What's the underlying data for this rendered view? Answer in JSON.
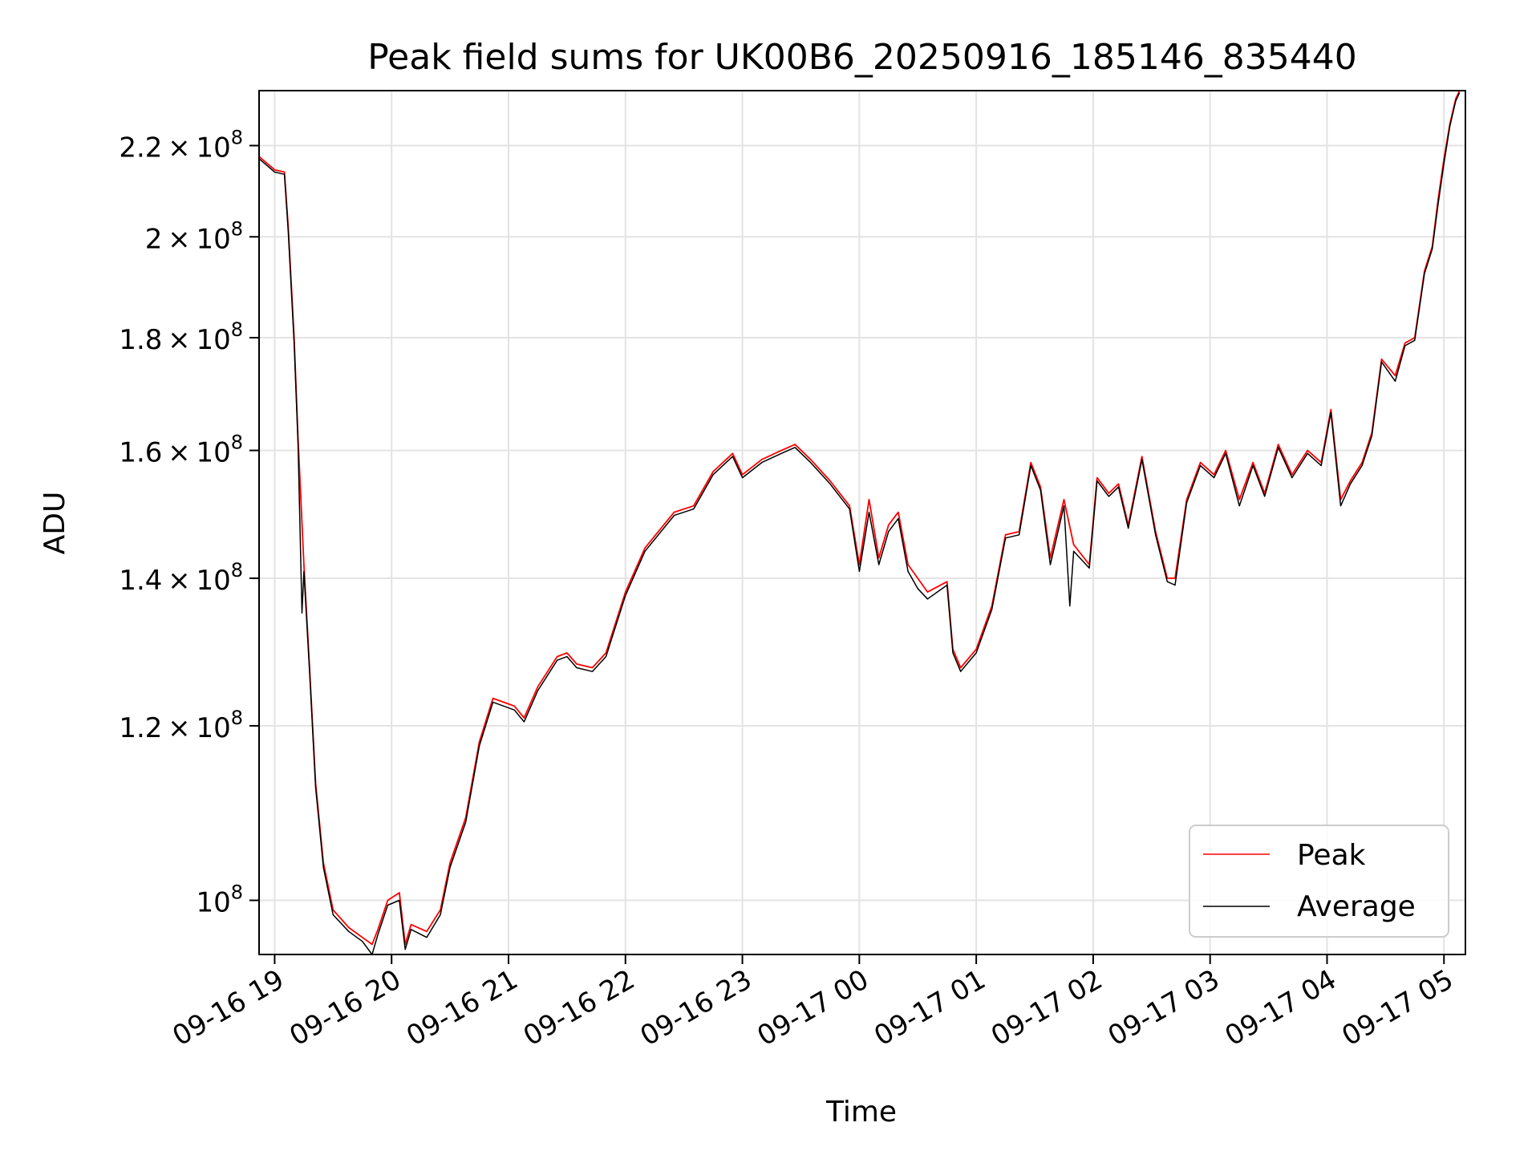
{
  "chart_data": {
    "type": "line",
    "title": "Peak field sums for UK00B6_20250916_185146_835440",
    "xlabel": "Time",
    "ylabel": "ADU",
    "xlim": [
      "2025-09-16 18:52",
      "2025-09-17 05:11"
    ],
    "ylim": [
      94500000.0,
      233000000.0
    ],
    "yscale": "log",
    "grid": true,
    "legend_position": "lower-right",
    "x_ticks": [
      {
        "t": "2025-09-16 19:00",
        "label": "09-16 19"
      },
      {
        "t": "2025-09-16 20:00",
        "label": "09-16 20"
      },
      {
        "t": "2025-09-16 21:00",
        "label": "09-16 21"
      },
      {
        "t": "2025-09-16 22:00",
        "label": "09-16 22"
      },
      {
        "t": "2025-09-16 23:00",
        "label": "09-16 23"
      },
      {
        "t": "2025-09-17 00:00",
        "label": "09-17 00"
      },
      {
        "t": "2025-09-17 01:00",
        "label": "09-17 01"
      },
      {
        "t": "2025-09-17 02:00",
        "label": "09-17 02"
      },
      {
        "t": "2025-09-17 03:00",
        "label": "09-17 03"
      },
      {
        "t": "2025-09-17 04:00",
        "label": "09-17 04"
      },
      {
        "t": "2025-09-17 05:00",
        "label": "09-17 05"
      }
    ],
    "y_ticks": [
      {
        "value": 100000000.0,
        "mantissa": "",
        "exp": "8"
      },
      {
        "value": 120000000.0,
        "mantissa": "1.2",
        "exp": "8"
      },
      {
        "value": 140000000.0,
        "mantissa": "1.4",
        "exp": "8"
      },
      {
        "value": 160000000.0,
        "mantissa": "1.6",
        "exp": "8"
      },
      {
        "value": 180000000.0,
        "mantissa": "1.8",
        "exp": "8"
      },
      {
        "value": 200000000.0,
        "mantissa": "2",
        "exp": "8"
      },
      {
        "value": 220000000.0,
        "mantissa": "2.2",
        "exp": "8"
      }
    ],
    "series": [
      {
        "name": "Peak",
        "color": "#ff0000",
        "points": [
          [
            "2025-09-16 18:52",
            217500000.0
          ],
          [
            "2025-09-16 18:56",
            216000000.0
          ],
          [
            "2025-09-16 19:00",
            214500000.0
          ],
          [
            "2025-09-16 19:05",
            214000000.0
          ],
          [
            "2025-09-16 19:07",
            202000000.0
          ],
          [
            "2025-09-16 19:10",
            180000000.0
          ],
          [
            "2025-09-16 19:12",
            162000000.0
          ],
          [
            "2025-09-16 19:15",
            142000000.0
          ],
          [
            "2025-09-16 19:18",
            127000000.0
          ],
          [
            "2025-09-16 19:21",
            113000000.0
          ],
          [
            "2025-09-16 19:25",
            104000000.0
          ],
          [
            "2025-09-16 19:30",
            99000000.0
          ],
          [
            "2025-09-16 19:38",
            97200000.0
          ],
          [
            "2025-09-16 19:45",
            96200000.0
          ],
          [
            "2025-09-16 19:50",
            95500000.0
          ],
          [
            "2025-09-16 19:53",
            97000000.0
          ],
          [
            "2025-09-16 19:58",
            100000000.0
          ],
          [
            "2025-09-16 20:04",
            100800000.0
          ],
          [
            "2025-09-16 20:07",
            95500000.0
          ],
          [
            "2025-09-16 20:10",
            97500000.0
          ],
          [
            "2025-09-16 20:18",
            96800000.0
          ],
          [
            "2025-09-16 20:25",
            99000000.0
          ],
          [
            "2025-09-16 20:30",
            104000000.0
          ],
          [
            "2025-09-16 20:38",
            109000000.0
          ],
          [
            "2025-09-16 20:45",
            118000000.0
          ],
          [
            "2025-09-16 20:52",
            123500000.0
          ],
          [
            "2025-09-16 21:03",
            122500000.0
          ],
          [
            "2025-09-16 21:08",
            121000000.0
          ],
          [
            "2025-09-16 21:15",
            125000000.0
          ],
          [
            "2025-09-16 21:25",
            129000000.0
          ],
          [
            "2025-09-16 21:30",
            129500000.0
          ],
          [
            "2025-09-16 21:35",
            128000000.0
          ],
          [
            "2025-09-16 21:43",
            127500000.0
          ],
          [
            "2025-09-16 21:50",
            129500000.0
          ],
          [
            "2025-09-16 22:00",
            138000000.0
          ],
          [
            "2025-09-16 22:10",
            144500000.0
          ],
          [
            "2025-09-16 22:25",
            150000000.0
          ],
          [
            "2025-09-16 22:35",
            151000000.0
          ],
          [
            "2025-09-16 22:45",
            156500000.0
          ],
          [
            "2025-09-16 22:55",
            159500000.0
          ],
          [
            "2025-09-16 23:00",
            156000000.0
          ],
          [
            "2025-09-16 23:10",
            158500000.0
          ],
          [
            "2025-09-16 23:20",
            160000000.0
          ],
          [
            "2025-09-16 23:27",
            161000000.0
          ],
          [
            "2025-09-16 23:35",
            158500000.0
          ],
          [
            "2025-09-16 23:45",
            155000000.0
          ],
          [
            "2025-09-16 23:55",
            151000000.0
          ],
          [
            "2025-09-17 00:00",
            142000000.0
          ],
          [
            "2025-09-17 00:05",
            152000000.0
          ],
          [
            "2025-09-17 00:10",
            143000000.0
          ],
          [
            "2025-09-17 00:15",
            148000000.0
          ],
          [
            "2025-09-17 00:20",
            150000000.0
          ],
          [
            "2025-09-17 00:25",
            142000000.0
          ],
          [
            "2025-09-17 00:30",
            140000000.0
          ],
          [
            "2025-09-17 00:35",
            138000000.0
          ],
          [
            "2025-09-17 00:45",
            139500000.0
          ],
          [
            "2025-09-17 00:48",
            130000000.0
          ],
          [
            "2025-09-17 00:52",
            127500000.0
          ],
          [
            "2025-09-17 01:00",
            130000000.0
          ],
          [
            "2025-09-17 01:08",
            136000000.0
          ],
          [
            "2025-09-17 01:15",
            146500000.0
          ],
          [
            "2025-09-17 01:22",
            147000000.0
          ],
          [
            "2025-09-17 01:28",
            158000000.0
          ],
          [
            "2025-09-17 01:33",
            154000000.0
          ],
          [
            "2025-09-17 01:38",
            143000000.0
          ],
          [
            "2025-09-17 01:45",
            152000000.0
          ],
          [
            "2025-09-17 01:50",
            145000000.0
          ],
          [
            "2025-09-17 01:58",
            142000000.0
          ],
          [
            "2025-09-17 02:02",
            155500000.0
          ],
          [
            "2025-09-17 02:08",
            153000000.0
          ],
          [
            "2025-09-17 02:13",
            154500000.0
          ],
          [
            "2025-09-17 02:18",
            148000000.0
          ],
          [
            "2025-09-17 02:25",
            159000000.0
          ],
          [
            "2025-09-17 02:32",
            147000000.0
          ],
          [
            "2025-09-17 02:38",
            140000000.0
          ],
          [
            "2025-09-17 02:42",
            140000000.0
          ],
          [
            "2025-09-17 02:48",
            152000000.0
          ],
          [
            "2025-09-17 02:55",
            158000000.0
          ],
          [
            "2025-09-17 03:02",
            156000000.0
          ],
          [
            "2025-09-17 03:08",
            160000000.0
          ],
          [
            "2025-09-17 03:15",
            152000000.0
          ],
          [
            "2025-09-17 03:22",
            158000000.0
          ],
          [
            "2025-09-17 03:28",
            153000000.0
          ],
          [
            "2025-09-17 03:35",
            161000000.0
          ],
          [
            "2025-09-17 03:42",
            156000000.0
          ],
          [
            "2025-09-17 03:50",
            160000000.0
          ],
          [
            "2025-09-17 03:57",
            158000000.0
          ],
          [
            "2025-09-17 04:02",
            167000000.0
          ],
          [
            "2025-09-17 04:07",
            152000000.0
          ],
          [
            "2025-09-17 04:12",
            155000000.0
          ],
          [
            "2025-09-17 04:18",
            158000000.0
          ],
          [
            "2025-09-17 04:23",
            163000000.0
          ],
          [
            "2025-09-17 04:28",
            176000000.0
          ],
          [
            "2025-09-17 04:35",
            173000000.0
          ],
          [
            "2025-09-17 04:40",
            179000000.0
          ],
          [
            "2025-09-17 04:45",
            180000000.0
          ],
          [
            "2025-09-17 04:50",
            193000000.0
          ],
          [
            "2025-09-17 04:54",
            198000000.0
          ],
          [
            "2025-09-17 04:57",
            208000000.0
          ],
          [
            "2025-09-17 05:00",
            217000000.0
          ],
          [
            "2025-09-17 05:03",
            225000000.0
          ],
          [
            "2025-09-17 05:06",
            231000000.0
          ],
          [
            "2025-09-17 05:08",
            233000000.0
          ]
        ]
      },
      {
        "name": "Average",
        "color": "#000000",
        "points": [
          [
            "2025-09-16 18:52",
            217000000.0
          ],
          [
            "2025-09-16 18:56",
            215500000.0
          ],
          [
            "2025-09-16 19:00",
            214000000.0
          ],
          [
            "2025-09-16 19:05",
            213500000.0
          ],
          [
            "2025-09-16 19:07",
            201000000.0
          ],
          [
            "2025-09-16 19:10",
            179000000.0
          ],
          [
            "2025-09-16 19:12",
            161000000.0
          ],
          [
            "2025-09-16 19:14",
            135000000.0
          ],
          [
            "2025-09-16 19:15",
            141000000.0
          ],
          [
            "2025-09-16 19:18",
            126500000.0
          ],
          [
            "2025-09-16 19:21",
            112500000.0
          ],
          [
            "2025-09-16 19:25",
            103500000.0
          ],
          [
            "2025-09-16 19:30",
            98500000.0
          ],
          [
            "2025-09-16 19:38",
            96800000.0
          ],
          [
            "2025-09-16 19:45",
            95800000.0
          ],
          [
            "2025-09-16 19:50",
            94500000.0
          ],
          [
            "2025-09-16 19:53",
            96500000.0
          ],
          [
            "2025-09-16 19:58",
            99500000.0
          ],
          [
            "2025-09-16 20:04",
            100000000.0
          ],
          [
            "2025-09-16 20:07",
            95000000.0
          ],
          [
            "2025-09-16 20:10",
            97000000.0
          ],
          [
            "2025-09-16 20:18",
            96200000.0
          ],
          [
            "2025-09-16 20:25",
            98500000.0
          ],
          [
            "2025-09-16 20:30",
            103500000.0
          ],
          [
            "2025-09-16 20:38",
            108500000.0
          ],
          [
            "2025-09-16 20:45",
            117500000.0
          ],
          [
            "2025-09-16 20:52",
            123000000.0
          ],
          [
            "2025-09-16 21:03",
            122000000.0
          ],
          [
            "2025-09-16 21:08",
            120500000.0
          ],
          [
            "2025-09-16 21:15",
            124500000.0
          ],
          [
            "2025-09-16 21:25",
            128500000.0
          ],
          [
            "2025-09-16 21:30",
            129000000.0
          ],
          [
            "2025-09-16 21:35",
            127500000.0
          ],
          [
            "2025-09-16 21:43",
            127000000.0
          ],
          [
            "2025-09-16 21:50",
            129000000.0
          ],
          [
            "2025-09-16 22:00",
            137500000.0
          ],
          [
            "2025-09-16 22:10",
            144000000.0
          ],
          [
            "2025-09-16 22:25",
            149500000.0
          ],
          [
            "2025-09-16 22:35",
            150500000.0
          ],
          [
            "2025-09-16 22:45",
            156000000.0
          ],
          [
            "2025-09-16 22:55",
            159000000.0
          ],
          [
            "2025-09-16 23:00",
            155500000.0
          ],
          [
            "2025-09-16 23:10",
            158000000.0
          ],
          [
            "2025-09-16 23:20",
            159500000.0
          ],
          [
            "2025-09-16 23:27",
            160500000.0
          ],
          [
            "2025-09-16 23:35",
            158000000.0
          ],
          [
            "2025-09-16 23:45",
            154500000.0
          ],
          [
            "2025-09-16 23:55",
            150500000.0
          ],
          [
            "2025-09-17 00:00",
            141000000.0
          ],
          [
            "2025-09-17 00:05",
            150000000.0
          ],
          [
            "2025-09-17 00:10",
            142000000.0
          ],
          [
            "2025-09-17 00:15",
            147000000.0
          ],
          [
            "2025-09-17 00:20",
            149000000.0
          ],
          [
            "2025-09-17 00:25",
            141000000.0
          ],
          [
            "2025-09-17 00:30",
            138500000.0
          ],
          [
            "2025-09-17 00:35",
            137000000.0
          ],
          [
            "2025-09-17 00:45",
            139000000.0
          ],
          [
            "2025-09-17 00:48",
            129500000.0
          ],
          [
            "2025-09-17 00:52",
            127000000.0
          ],
          [
            "2025-09-17 01:00",
            129500000.0
          ],
          [
            "2025-09-17 01:08",
            135500000.0
          ],
          [
            "2025-09-17 01:15",
            146000000.0
          ],
          [
            "2025-09-17 01:22",
            146500000.0
          ],
          [
            "2025-09-17 01:28",
            157500000.0
          ],
          [
            "2025-09-17 01:33",
            153500000.0
          ],
          [
            "2025-09-17 01:38",
            142000000.0
          ],
          [
            "2025-09-17 01:45",
            151000000.0
          ],
          [
            "2025-09-17 01:48",
            136000000.0
          ],
          [
            "2025-09-17 01:50",
            144000000.0
          ],
          [
            "2025-09-17 01:58",
            141500000.0
          ],
          [
            "2025-09-17 02:02",
            155000000.0
          ],
          [
            "2025-09-17 02:08",
            152500000.0
          ],
          [
            "2025-09-17 02:13",
            154000000.0
          ],
          [
            "2025-09-17 02:18",
            147500000.0
          ],
          [
            "2025-09-17 02:25",
            158500000.0
          ],
          [
            "2025-09-17 02:32",
            146500000.0
          ],
          [
            "2025-09-17 02:38",
            139500000.0
          ],
          [
            "2025-09-17 02:42",
            139000000.0
          ],
          [
            "2025-09-17 02:48",
            151500000.0
          ],
          [
            "2025-09-17 02:55",
            157500000.0
          ],
          [
            "2025-09-17 03:02",
            155500000.0
          ],
          [
            "2025-09-17 03:08",
            159500000.0
          ],
          [
            "2025-09-17 03:15",
            151000000.0
          ],
          [
            "2025-09-17 03:22",
            157500000.0
          ],
          [
            "2025-09-17 03:28",
            152500000.0
          ],
          [
            "2025-09-17 03:35",
            160500000.0
          ],
          [
            "2025-09-17 03:42",
            155500000.0
          ],
          [
            "2025-09-17 03:50",
            159500000.0
          ],
          [
            "2025-09-17 03:57",
            157500000.0
          ],
          [
            "2025-09-17 04:02",
            166500000.0
          ],
          [
            "2025-09-17 04:07",
            151000000.0
          ],
          [
            "2025-09-17 04:12",
            154500000.0
          ],
          [
            "2025-09-17 04:18",
            157500000.0
          ],
          [
            "2025-09-17 04:23",
            162500000.0
          ],
          [
            "2025-09-17 04:28",
            175500000.0
          ],
          [
            "2025-09-17 04:35",
            172000000.0
          ],
          [
            "2025-09-17 04:40",
            178500000.0
          ],
          [
            "2025-09-17 04:45",
            179500000.0
          ],
          [
            "2025-09-17 04:50",
            192500000.0
          ],
          [
            "2025-09-17 04:54",
            197500000.0
          ],
          [
            "2025-09-17 04:57",
            207000000.0
          ],
          [
            "2025-09-17 05:00",
            216000000.0
          ],
          [
            "2025-09-17 05:03",
            224500000.0
          ],
          [
            "2025-09-17 05:06",
            230500000.0
          ],
          [
            "2025-09-17 05:08",
            232500000.0
          ]
        ]
      }
    ]
  }
}
